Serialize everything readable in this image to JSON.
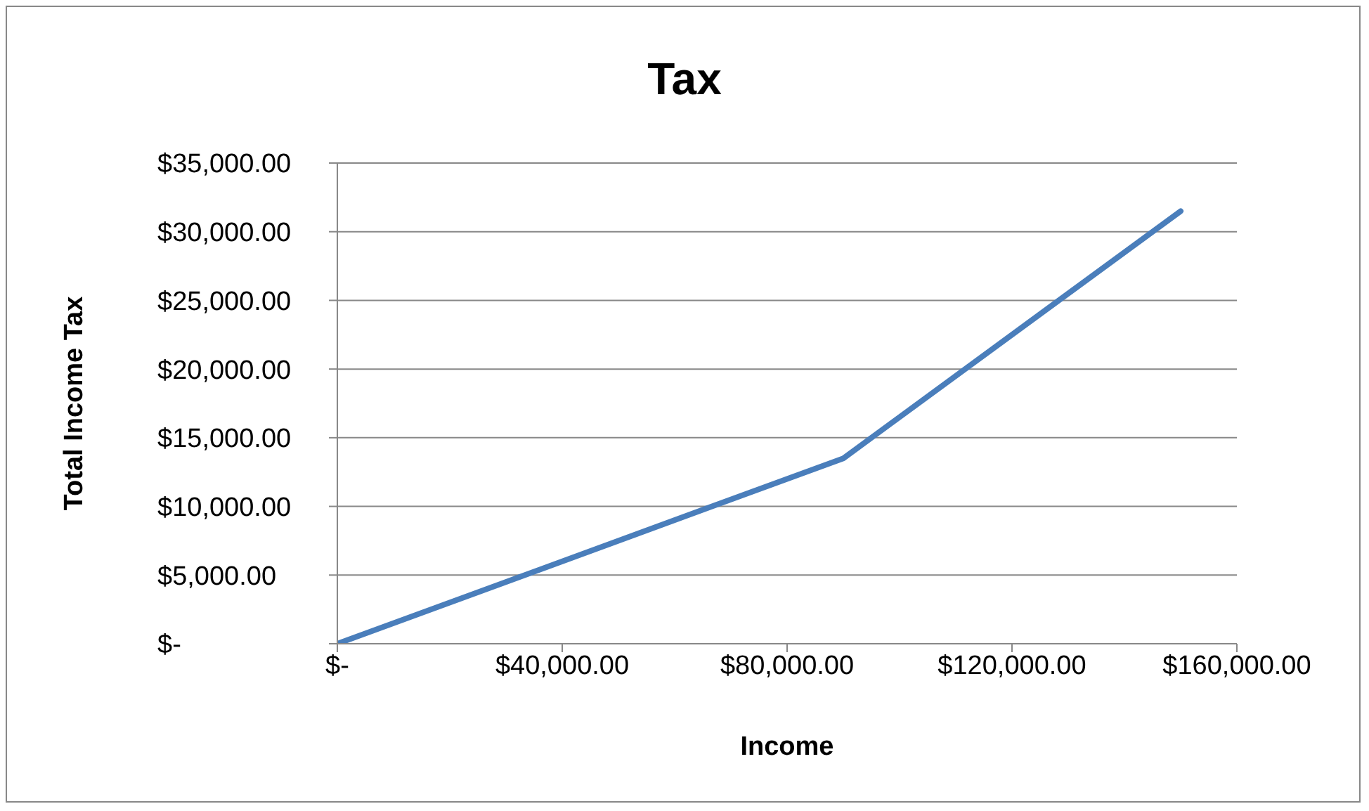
{
  "chart_data": {
    "type": "line",
    "title": "Tax",
    "xlabel": "Income",
    "ylabel": "Total Income Tax",
    "x": [
      0,
      90000,
      150000
    ],
    "series": [
      {
        "color": "#4a7ebb",
        "values": [
          0,
          13500,
          31500
        ]
      }
    ],
    "xlim": [
      0,
      160000
    ],
    "xticks": [
      {
        "value": 0,
        "label": "$-"
      },
      {
        "value": 40000,
        "label": "$40,000.00"
      },
      {
        "value": 80000,
        "label": "$80,000.00"
      },
      {
        "value": 120000,
        "label": "$120,000.00"
      },
      {
        "value": 160000,
        "label": "$160,000.00"
      }
    ],
    "ylim": [
      0,
      35000
    ],
    "yticks": [
      {
        "value": 0,
        "label": "$-"
      },
      {
        "value": 5000,
        "label": "$5,000.00"
      },
      {
        "value": 10000,
        "label": "$10,000.00"
      },
      {
        "value": 15000,
        "label": "$15,000.00"
      },
      {
        "value": 20000,
        "label": "$20,000.00"
      },
      {
        "value": 25000,
        "label": "$25,000.00"
      },
      {
        "value": 30000,
        "label": "$30,000.00"
      },
      {
        "value": 35000,
        "label": "$35,000.00"
      }
    ],
    "grid": "y",
    "legend": false,
    "marker": "none",
    "line_style": "solid"
  }
}
